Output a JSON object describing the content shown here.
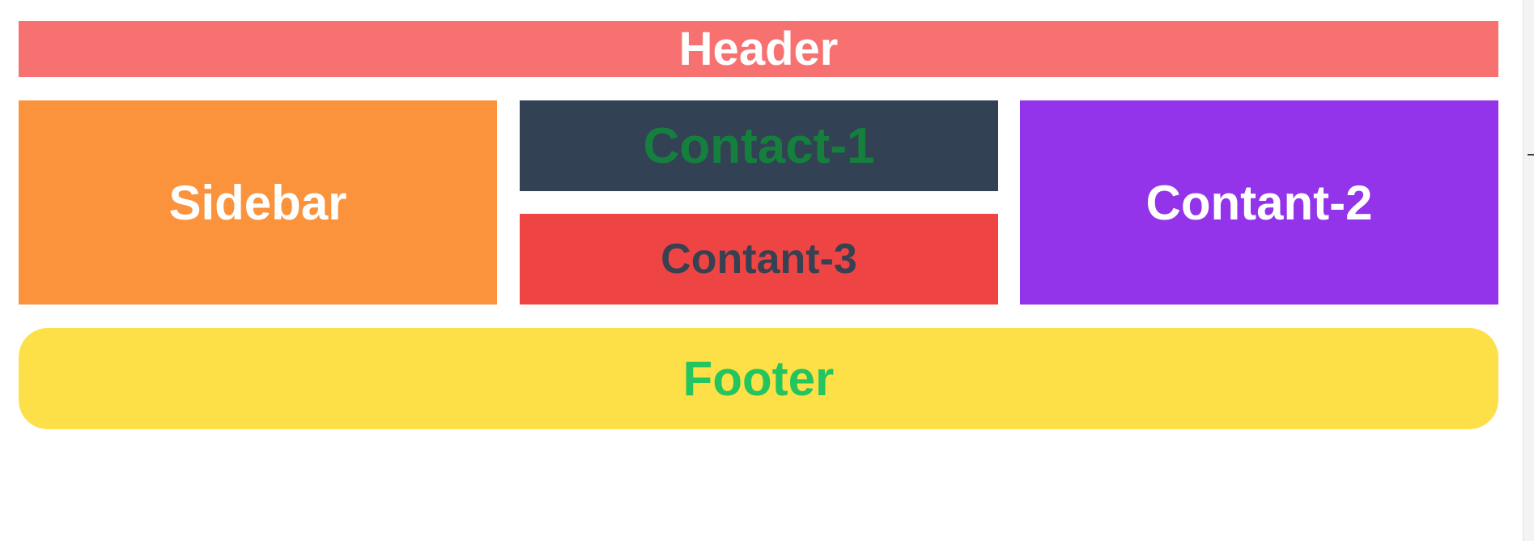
{
  "layout_demo": {
    "header": {
      "label": "Header",
      "bg": "#f87171",
      "fg": "#ffffff"
    },
    "sidebar": {
      "label": "Sidebar",
      "bg": "#fb923c",
      "fg": "#ffffff"
    },
    "content1": {
      "label": "Contact-1",
      "bg": "#334155",
      "fg": "#15803d"
    },
    "content3": {
      "label": "Contant-3",
      "bg": "#ef4444",
      "fg": "#374151"
    },
    "content2": {
      "label": "Contant-2",
      "bg": "#9333ea",
      "fg": "#ffffff"
    },
    "footer": {
      "label": "Footer",
      "bg": "#fde047",
      "fg": "#22c55e"
    }
  }
}
